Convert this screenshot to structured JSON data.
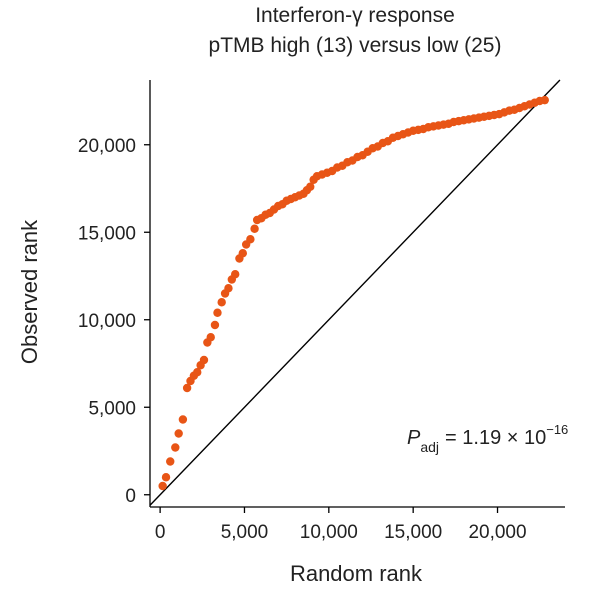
{
  "chart_data": {
    "type": "scatter",
    "title": "Interferon-γ response",
    "subtitle": "pTMB high (13) versus low (25)",
    "xlabel": "Random rank",
    "ylabel": "Observed rank",
    "xlim": [
      -600,
      24000
    ],
    "ylim": [
      -700,
      23700
    ],
    "x_ticks": [
      {
        "value": 0,
        "label": "0"
      },
      {
        "value": 5000,
        "label": "5,000"
      },
      {
        "value": 10000,
        "label": "10,000"
      },
      {
        "value": 15000,
        "label": "15,000"
      },
      {
        "value": 20000,
        "label": "20,000"
      }
    ],
    "y_ticks": [
      {
        "value": 0,
        "label": "0"
      },
      {
        "value": 5000,
        "label": "5,000"
      },
      {
        "value": 10000,
        "label": "10,000"
      },
      {
        "value": 15000,
        "label": "15,000"
      },
      {
        "value": 20000,
        "label": "20,000"
      }
    ],
    "grid": false,
    "reference_line": {
      "type": "identity",
      "from": [
        -600,
        -600
      ],
      "to": [
        23700,
        23700
      ]
    },
    "annotation": {
      "symbol": "P",
      "subscript": "adj",
      "text": "= 1.19 × 10",
      "exponent": "−16"
    },
    "colors": {
      "points": "#E85516",
      "line": "#000000",
      "axes": "#000000"
    },
    "series": [
      {
        "points": [
          [
            150,
            500
          ],
          [
            350,
            1000
          ],
          [
            600,
            1900
          ],
          [
            900,
            2700
          ],
          [
            1100,
            3500
          ],
          [
            1350,
            4300
          ],
          [
            1600,
            6100
          ],
          [
            1800,
            6500
          ],
          [
            2000,
            6800
          ],
          [
            2200,
            7000
          ],
          [
            2400,
            7400
          ],
          [
            2600,
            7700
          ],
          [
            2800,
            8700
          ],
          [
            3000,
            9000
          ],
          [
            3250,
            9700
          ],
          [
            3400,
            10400
          ],
          [
            3650,
            11000
          ],
          [
            3850,
            11500
          ],
          [
            4050,
            11800
          ],
          [
            4250,
            12300
          ],
          [
            4450,
            12600
          ],
          [
            4700,
            13500
          ],
          [
            4900,
            13800
          ],
          [
            5100,
            14300
          ],
          [
            5350,
            14600
          ],
          [
            5600,
            15200
          ],
          [
            5750,
            15700
          ],
          [
            6000,
            15800
          ],
          [
            6250,
            16000
          ],
          [
            6500,
            16100
          ],
          [
            6750,
            16300
          ],
          [
            7000,
            16500
          ],
          [
            7250,
            16600
          ],
          [
            7500,
            16800
          ],
          [
            7750,
            16900
          ],
          [
            8000,
            17000
          ],
          [
            8250,
            17100
          ],
          [
            8500,
            17200
          ],
          [
            8700,
            17400
          ],
          [
            8900,
            17600
          ],
          [
            9100,
            18000
          ],
          [
            9300,
            18200
          ],
          [
            9600,
            18300
          ],
          [
            9900,
            18400
          ],
          [
            10200,
            18500
          ],
          [
            10500,
            18700
          ],
          [
            10800,
            18800
          ],
          [
            11100,
            19000
          ],
          [
            11400,
            19100
          ],
          [
            11700,
            19300
          ],
          [
            12000,
            19400
          ],
          [
            12300,
            19600
          ],
          [
            12600,
            19800
          ],
          [
            12900,
            19900
          ],
          [
            13200,
            20100
          ],
          [
            13500,
            20200
          ],
          [
            13800,
            20400
          ],
          [
            14100,
            20500
          ],
          [
            14400,
            20600
          ],
          [
            14700,
            20700
          ],
          [
            15000,
            20800
          ],
          [
            15300,
            20850
          ],
          [
            15600,
            20900
          ],
          [
            15900,
            21000
          ],
          [
            16200,
            21050
          ],
          [
            16500,
            21100
          ],
          [
            16800,
            21150
          ],
          [
            17100,
            21200
          ],
          [
            17400,
            21300
          ],
          [
            17700,
            21350
          ],
          [
            18000,
            21400
          ],
          [
            18300,
            21450
          ],
          [
            18600,
            21500
          ],
          [
            18900,
            21550
          ],
          [
            19200,
            21600
          ],
          [
            19500,
            21650
          ],
          [
            19800,
            21700
          ],
          [
            20100,
            21750
          ],
          [
            20400,
            21850
          ],
          [
            20700,
            21950
          ],
          [
            21000,
            22000
          ],
          [
            21300,
            22100
          ],
          [
            21600,
            22200
          ],
          [
            21900,
            22300
          ],
          [
            22200,
            22400
          ],
          [
            22500,
            22500
          ],
          [
            22800,
            22550
          ]
        ]
      }
    ]
  }
}
